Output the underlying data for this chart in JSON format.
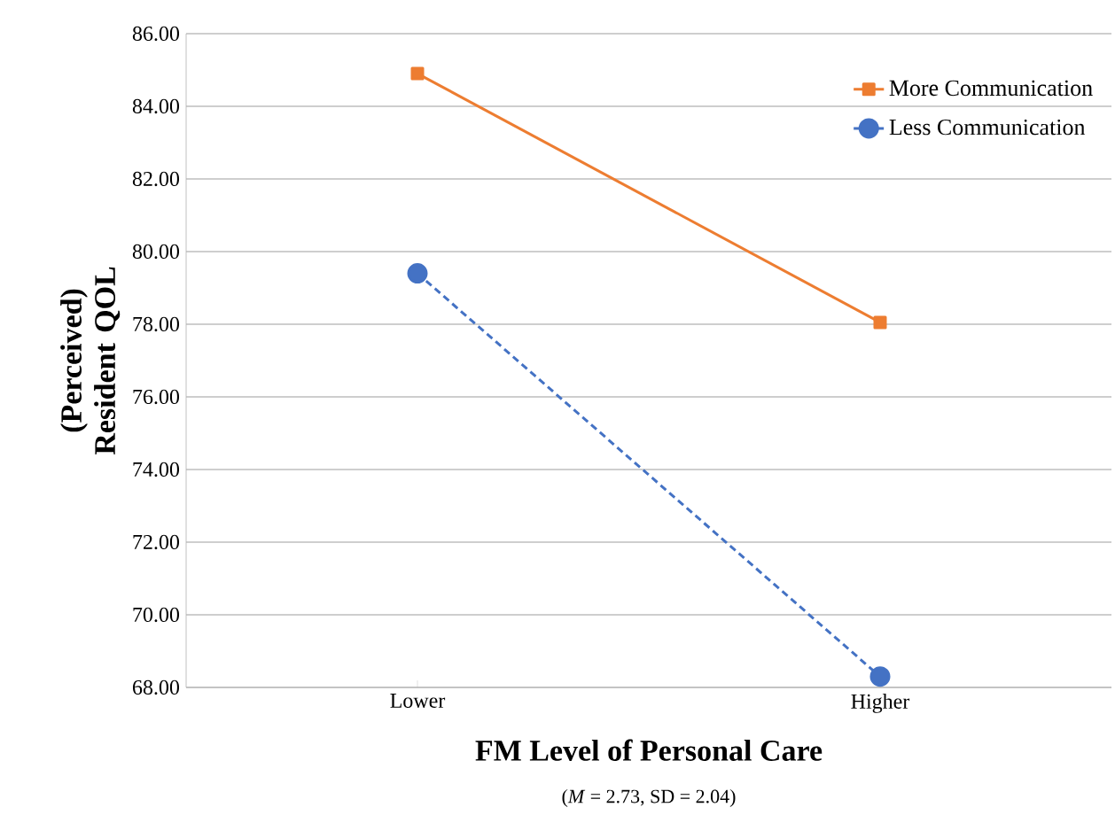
{
  "chart_data": {
    "type": "line",
    "xlabel": "FM Level of Personal Care",
    "ylabel": "(Perceived) Resident QOL",
    "annotations": [
      "(*M* = 2.73, SD = 2.04)"
    ],
    "categories": [
      "Lower",
      "Higher"
    ],
    "series": [
      {
        "name": "More Communication",
        "color": "#ed7d31",
        "values": [
          84.9,
          78.05
        ],
        "marker": "square",
        "line_style": "solid"
      },
      {
        "name": "Less Communication",
        "color": "#4472c4",
        "values": [
          79.4,
          68.3
        ],
        "marker": "circle",
        "line_style": "dashed"
      }
    ],
    "ylim": [
      68,
      86
    ],
    "yticks": [
      {
        "value": 68,
        "label": "68.00"
      },
      {
        "value": 70,
        "label": "70.00"
      },
      {
        "value": 72,
        "label": "72.00"
      },
      {
        "value": 74,
        "label": "74.00"
      },
      {
        "value": 76,
        "label": "76.00"
      },
      {
        "value": 78,
        "label": "78.00"
      },
      {
        "value": 80,
        "label": "80.00"
      },
      {
        "value": 82,
        "label": "82.00"
      },
      {
        "value": 84,
        "label": "84.00"
      },
      {
        "value": 86,
        "label": "86.00"
      }
    ],
    "grid": "y",
    "legend": "top right"
  }
}
